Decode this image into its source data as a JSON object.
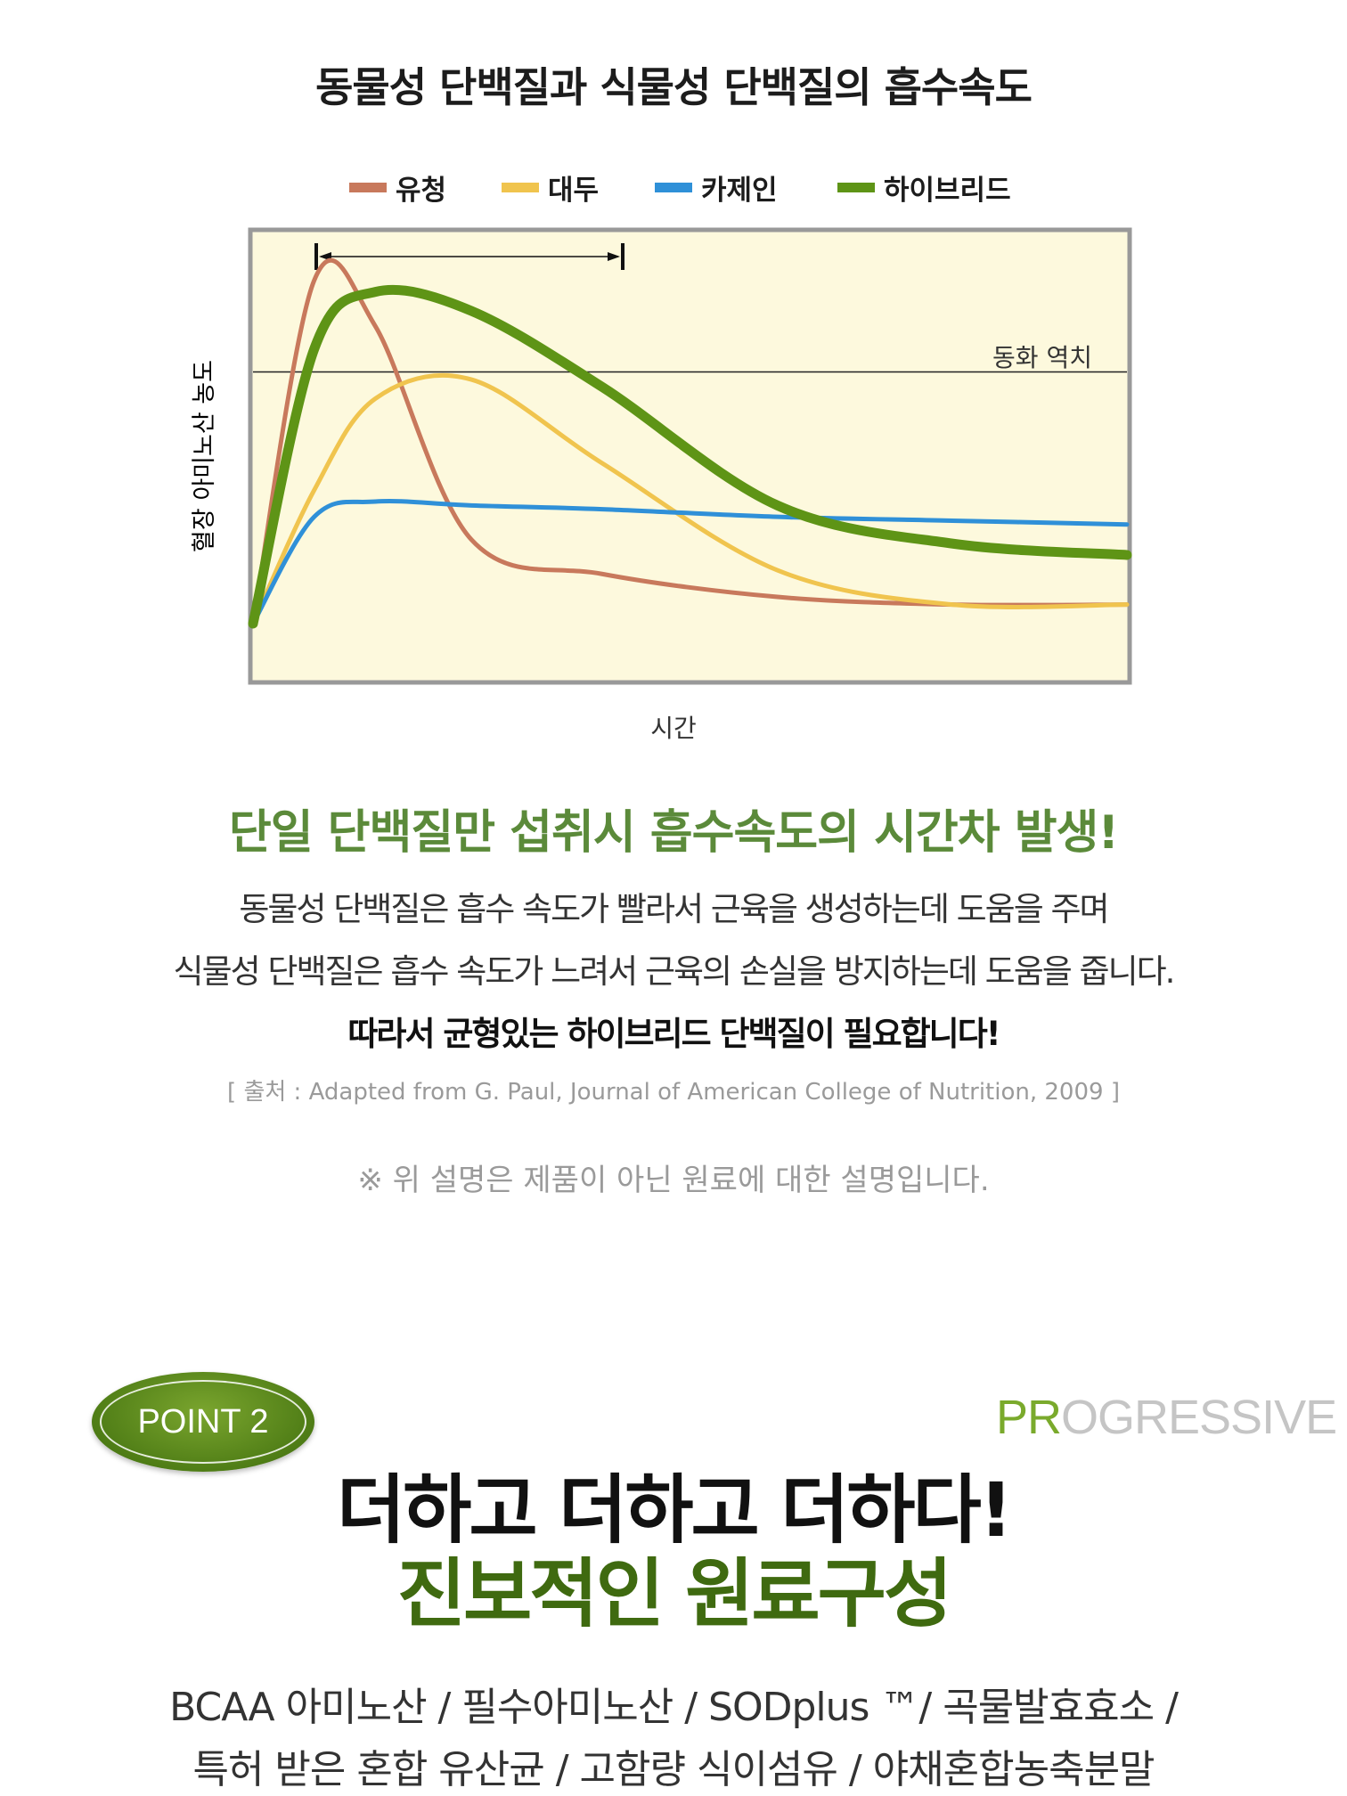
{
  "chart_title": "동물성 단백질과 식물성 단백질의 흡수속도",
  "chart_data": {
    "type": "line",
    "xlabel": "시간",
    "ylabel": "혈장 아미노산 농도",
    "threshold_label": "동화 역치",
    "threshold": 0.66,
    "grid": false,
    "legend_position": "top",
    "background_color": "#fdf9dd",
    "frame_color": "#999999",
    "x": [
      0,
      0.07,
      0.14,
      0.25,
      0.4,
      0.6,
      0.8,
      1.0
    ],
    "series": [
      {
        "name": "유청",
        "color": "#c8795c",
        "values": [
          0.0,
          0.9,
          0.78,
          0.22,
          0.13,
          0.07,
          0.05,
          0.05
        ]
      },
      {
        "name": "대두",
        "color": "#f0c44e",
        "values": [
          0.0,
          0.35,
          0.59,
          0.64,
          0.42,
          0.14,
          0.05,
          0.05
        ]
      },
      {
        "name": "카제인",
        "color": "#2f90d8",
        "values": [
          0.0,
          0.28,
          0.32,
          0.31,
          0.3,
          0.28,
          0.27,
          0.26
        ]
      },
      {
        "name": "하이브리드",
        "color": "#5e9416",
        "values": [
          0.0,
          0.72,
          0.87,
          0.82,
          0.62,
          0.31,
          0.21,
          0.18
        ]
      }
    ]
  },
  "headline": "단일 단백질만 섭취시 흡수속도의 시간차 발생!",
  "description": [
    "동물성 단백질은 흡수 속도가 빨라서 근육을 생성하는데 도움을 주며",
    "식물성 단백질은 흡수 속도가 느려서 근육의 손실을 방지하는데 도움을 줍니다.",
    "따라서 균형있는 하이브리드 단백질이 필요합니다!"
  ],
  "source": "[ 출처 : Adapted from G. Paul, Journal of American College of Nutrition, 2009 ]",
  "note": "※ 위 설명은 제품이 아닌 원료에 대한 설명입니다.",
  "point_badge": "POINT 2",
  "progressive": {
    "accent": "PR",
    "rest": "OGRESSIVE"
  },
  "main_heading": "더하고 더하고 더하다!",
  "sub_heading": "진보적인 원료구성",
  "ingredients": [
    "BCAA 아미노산 / 필수아미노산 / SODplus ™/ 곡물발효효소 /",
    "특허 받은 혼합 유산균 / 고함량 식이섬유 / 야채혼합농축분말"
  ],
  "colors": {
    "accent_green": "#5b8a3a",
    "dark_green": "#3f6a10",
    "gray_text": "#9a9a9a"
  }
}
